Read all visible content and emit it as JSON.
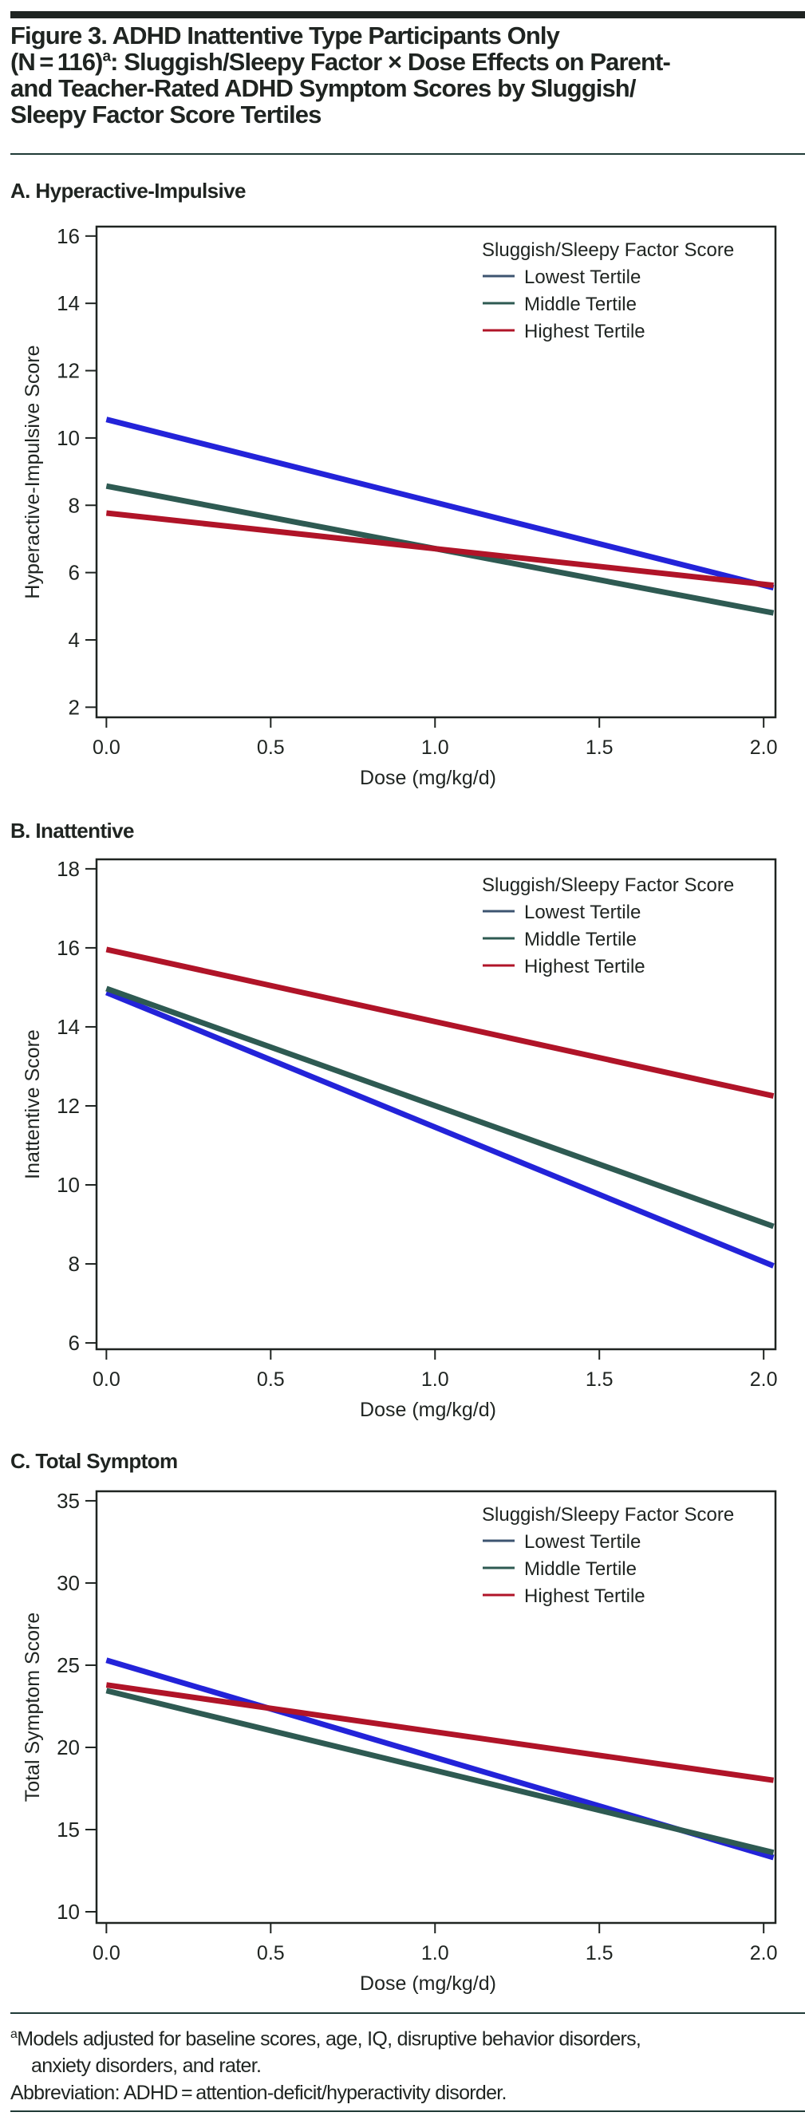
{
  "figure": {
    "title_part1": "Figure 3. ADHD Inattentive Type Participants Only",
    "title_part2_prefix": "(N = 116)",
    "title_part2_sup": "a",
    "title_part2_suffix": ": Sluggish/Sleepy Factor × Dose Effects on Parent-",
    "title_part3": "and Teacher-Rated ADHD Symptom Scores by Sluggish/",
    "title_part4": "Sleepy Factor Score Tertiles"
  },
  "colors": {
    "lowest": "#2323d9",
    "middle": "#2e5a52",
    "highest": "#b01428",
    "legend_lowest_swatch": "#3d5470",
    "axis": "#1f2421"
  },
  "footnote": {
    "sup": "a",
    "line1": "Models adjusted for baseline scores, age, IQ, disruptive behavior disorders,",
    "line2": "anxiety disorders, and rater.",
    "line3": "Abbreviation: ADHD = attention-deficit/hyperactivity disorder."
  },
  "chart_data": [
    {
      "type": "line",
      "panel_title": "A. Hyperactive-Impulsive",
      "xlabel": "Dose (mg/kg/d)",
      "ylabel": "Hyperactive-Impulsive Score",
      "xlim": [
        -0.03,
        2.036
      ],
      "ylim": [
        1.7,
        16.28
      ],
      "xticks": [
        "0.0",
        "0.5",
        "1.0",
        "1.5",
        "2.0"
      ],
      "xtick_values": [
        0,
        0.5,
        1.0,
        1.5,
        2.0
      ],
      "yticks": [
        "2",
        "4",
        "6",
        "8",
        "10",
        "12",
        "14",
        "16"
      ],
      "ytick_values": [
        2,
        4,
        6,
        8,
        10,
        12,
        14,
        16
      ],
      "grid": false,
      "legend_title": "Sluggish/Sleepy Factor Score",
      "legend_position": "top-right",
      "x": [
        0.0,
        2.03
      ],
      "series": [
        {
          "name": "Lowest Tertile",
          "key": "lowest",
          "values": [
            10.55,
            5.55
          ]
        },
        {
          "name": "Middle Tertile",
          "key": "middle",
          "values": [
            8.57,
            4.8
          ]
        },
        {
          "name": "Highest Tertile",
          "key": "highest",
          "values": [
            7.77,
            5.62
          ]
        }
      ]
    },
    {
      "type": "line",
      "panel_title": "B. Inattentive",
      "xlabel": "Dose (mg/kg/d)",
      "ylabel": "Inattentive Score",
      "xlim": [
        -0.03,
        2.036
      ],
      "ylim": [
        5.84,
        18.24
      ],
      "xticks": [
        "0.0",
        "0.5",
        "1.0",
        "1.5",
        "2.0"
      ],
      "xtick_values": [
        0,
        0.5,
        1.0,
        1.5,
        2.0
      ],
      "yticks": [
        "6",
        "8",
        "10",
        "12",
        "14",
        "16",
        "18"
      ],
      "ytick_values": [
        6,
        8,
        10,
        12,
        14,
        16,
        18
      ],
      "grid": false,
      "legend_title": "Sluggish/Sleepy Factor Score",
      "legend_position": "top-right",
      "x": [
        0.0,
        2.03
      ],
      "series": [
        {
          "name": "Lowest Tertile",
          "key": "lowest",
          "values": [
            14.87,
            7.95
          ]
        },
        {
          "name": "Middle Tertile",
          "key": "middle",
          "values": [
            14.97,
            8.95
          ]
        },
        {
          "name": "Highest Tertile",
          "key": "highest",
          "values": [
            15.96,
            12.25
          ]
        }
      ]
    },
    {
      "type": "line",
      "panel_title": "C. Total Symptom",
      "xlabel": "Dose (mg/kg/d)",
      "ylabel": "Total Symptom Score",
      "xlim": [
        -0.03,
        2.036
      ],
      "ylim": [
        9.32,
        35.58
      ],
      "xticks": [
        "0.0",
        "0.5",
        "1.0",
        "1.5",
        "2.0"
      ],
      "xtick_values": [
        0,
        0.5,
        1.0,
        1.5,
        2.0
      ],
      "yticks": [
        "10",
        "15",
        "20",
        "25",
        "30",
        "35"
      ],
      "ytick_values": [
        10,
        15,
        20,
        25,
        30,
        35
      ],
      "grid": false,
      "legend_title": "Sluggish/Sleepy Factor Score",
      "legend_position": "top-right",
      "x": [
        0.0,
        2.03
      ],
      "series": [
        {
          "name": "Lowest Tertile",
          "key": "lowest",
          "values": [
            25.3,
            13.3
          ]
        },
        {
          "name": "Middle Tertile",
          "key": "middle",
          "values": [
            23.45,
            13.6
          ]
        },
        {
          "name": "Highest Tertile",
          "key": "highest",
          "values": [
            23.8,
            18.0
          ]
        }
      ]
    }
  ]
}
